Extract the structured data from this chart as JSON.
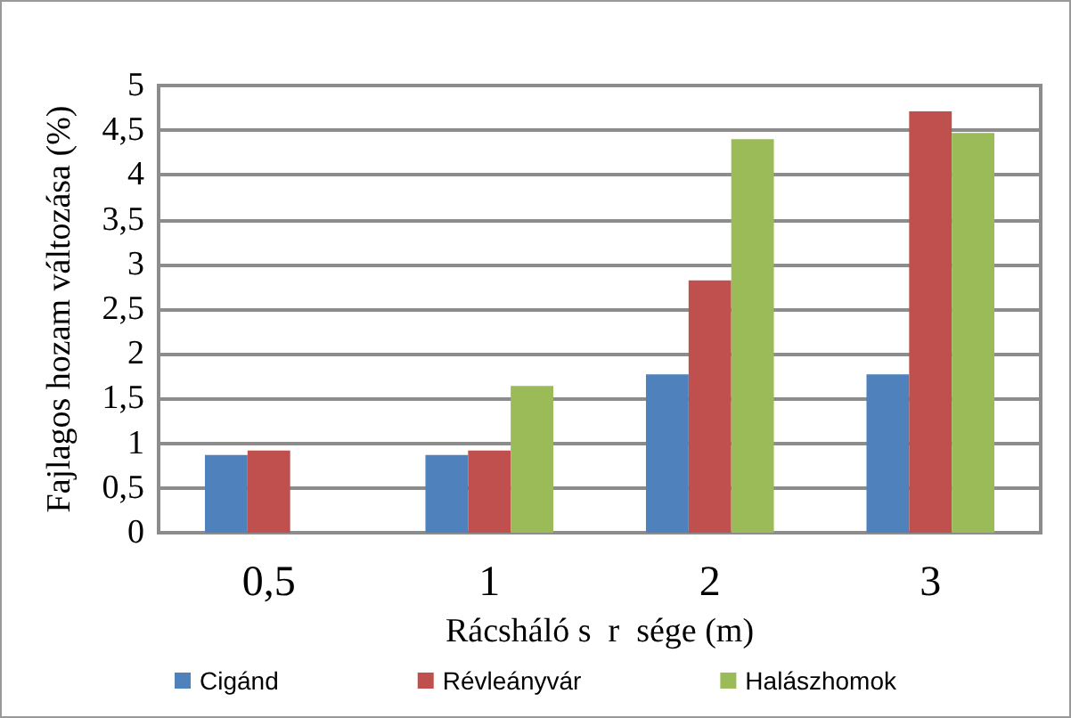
{
  "chart_data": {
    "type": "bar",
    "xlabel": "Rácsháló s  r  sége (m)",
    "ylabel": "Fajlagos hozam változása (%)",
    "categories": [
      "0,5",
      "1",
      "2",
      "3"
    ],
    "series": [
      {
        "name": "Cigánd",
        "color": "#4f81bd",
        "values": [
          0.87,
          0.87,
          1.77,
          1.77
        ]
      },
      {
        "name": "Révleányvár",
        "color": "#c0504d",
        "values": [
          0.92,
          0.92,
          2.82,
          4.71
        ]
      },
      {
        "name": "Halászhomok",
        "color": "#9bbb59",
        "values": [
          null,
          1.64,
          4.4,
          4.47
        ]
      }
    ],
    "ylim": [
      0,
      5
    ],
    "yticks": [
      {
        "value": 0,
        "label": "0"
      },
      {
        "value": 0.5,
        "label": "0,5"
      },
      {
        "value": 1,
        "label": "1"
      },
      {
        "value": 1.5,
        "label": "1,5"
      },
      {
        "value": 2,
        "label": "2"
      },
      {
        "value": 2.5,
        "label": "2,5"
      },
      {
        "value": 3,
        "label": "3"
      },
      {
        "value": 3.5,
        "label": "3,5"
      },
      {
        "value": 4,
        "label": "4"
      },
      {
        "value": 4.5,
        "label": "4,5"
      },
      {
        "value": 5,
        "label": "5"
      }
    ],
    "grid": "y",
    "legend": "bottom"
  }
}
